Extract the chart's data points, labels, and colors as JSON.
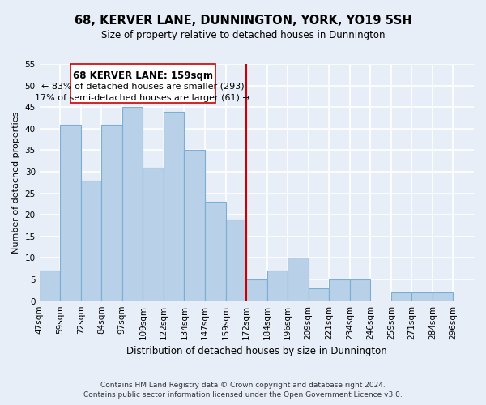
{
  "title": "68, KERVER LANE, DUNNINGTON, YORK, YO19 5SH",
  "subtitle": "Size of property relative to detached houses in Dunnington",
  "xlabel": "Distribution of detached houses by size in Dunnington",
  "ylabel": "Number of detached properties",
  "footnote1": "Contains HM Land Registry data © Crown copyright and database right 2024.",
  "footnote2": "Contains public sector information licensed under the Open Government Licence v3.0.",
  "bin_labels": [
    "47sqm",
    "59sqm",
    "72sqm",
    "84sqm",
    "97sqm",
    "109sqm",
    "122sqm",
    "134sqm",
    "147sqm",
    "159sqm",
    "172sqm",
    "184sqm",
    "196sqm",
    "209sqm",
    "221sqm",
    "234sqm",
    "246sqm",
    "259sqm",
    "271sqm",
    "284sqm",
    "296sqm"
  ],
  "bar_heights": [
    7,
    41,
    28,
    41,
    45,
    31,
    44,
    35,
    23,
    19,
    5,
    7,
    10,
    3,
    5,
    5,
    0,
    2,
    2,
    2,
    0
  ],
  "bar_color": "#b8d0e8",
  "bar_edge_color": "#7aaed4",
  "property_line_index": 9,
  "annotation_title": "68 KERVER LANE: 159sqm",
  "annotation_line2": "← 83% of detached houses are smaller (293)",
  "annotation_line3": "17% of semi-detached houses are larger (61) →",
  "ylim": [
    0,
    55
  ],
  "yticks": [
    0,
    5,
    10,
    15,
    20,
    25,
    30,
    35,
    40,
    45,
    50,
    55
  ],
  "property_line_color": "#cc0000",
  "annotation_box_color": "#ffffff",
  "annotation_box_edge": "#cc0000",
  "background_color": "#e8eef8",
  "grid_color": "#ffffff",
  "title_fontsize": 10.5,
  "subtitle_fontsize": 8.5,
  "ylabel_fontsize": 8,
  "xlabel_fontsize": 8.5,
  "tick_fontsize": 7.5,
  "annotation_title_fontsize": 8.5,
  "annotation_body_fontsize": 8.0,
  "footnote_fontsize": 6.5
}
